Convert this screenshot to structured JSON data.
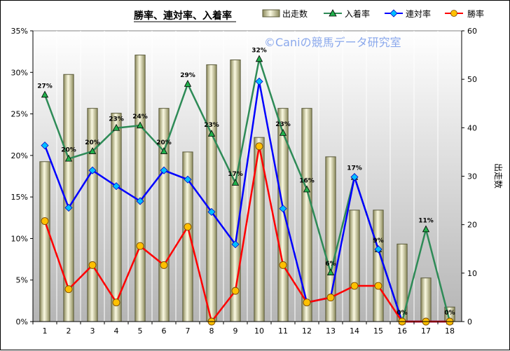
{
  "chart_data": {
    "type": "bar+line",
    "title": "勝率、連対率、入着率",
    "watermark": "©Caniの競馬データ研究室",
    "categories": [
      "1",
      "2",
      "3",
      "4",
      "5",
      "6",
      "7",
      "8",
      "9",
      "10",
      "11",
      "12",
      "13",
      "14",
      "15",
      "16",
      "17",
      "18"
    ],
    "bar_series": {
      "name": "出走数",
      "axis": "right",
      "values": [
        33,
        51,
        44,
        43,
        55,
        44,
        35,
        53,
        54,
        38,
        44,
        44,
        34,
        23,
        23,
        16,
        9,
        3
      ],
      "fill": "#efedc3",
      "stroke": "#5a5a3a"
    },
    "line_series": [
      {
        "name": "入着率",
        "axis": "left",
        "color": "#2e8b57",
        "marker": "triangle",
        "marker_fill": "#22b14c",
        "values": [
          27.3,
          19.6,
          20.5,
          23.3,
          23.6,
          20.5,
          28.6,
          22.6,
          16.7,
          31.6,
          22.7,
          15.9,
          5.9,
          17.4,
          8.7,
          0,
          11.1,
          0
        ],
        "labels": [
          "27%",
          "20%",
          "20%",
          "23%",
          "24%",
          "20%",
          "29%",
          "23%",
          "17%",
          "32%",
          "23%",
          "16%",
          "6%",
          "17%",
          "9%",
          "0%",
          "11%",
          "0%"
        ]
      },
      {
        "name": "連対率",
        "axis": "left",
        "color": "#0000ff",
        "marker": "diamond",
        "marker_fill": "#00bfff",
        "values": [
          21.2,
          13.7,
          18.2,
          16.3,
          14.5,
          18.2,
          17.1,
          13.2,
          9.3,
          28.9,
          13.6,
          2.3,
          2.9,
          17.4,
          8.7,
          0,
          0,
          0
        ]
      },
      {
        "name": "勝率",
        "axis": "left",
        "color": "#ff0000",
        "marker": "circle",
        "marker_fill": "#ffc000",
        "values": [
          12.1,
          3.9,
          6.8,
          2.3,
          9.1,
          6.8,
          11.4,
          0,
          3.7,
          21.1,
          6.8,
          2.3,
          2.9,
          4.3,
          4.3,
          0,
          0,
          0
        ]
      }
    ],
    "y_left": {
      "min": 0,
      "max": 35,
      "step": 5,
      "tick_labels": [
        "0%",
        "5%",
        "10%",
        "15%",
        "20%",
        "25%",
        "30%",
        "35%"
      ]
    },
    "y_right": {
      "min": 0,
      "max": 60,
      "step": 10,
      "tick_labels": [
        "0",
        "10",
        "20",
        "30",
        "40",
        "50",
        "60"
      ],
      "label": "出走数"
    },
    "grid": "vertical",
    "legend_position": "top"
  }
}
